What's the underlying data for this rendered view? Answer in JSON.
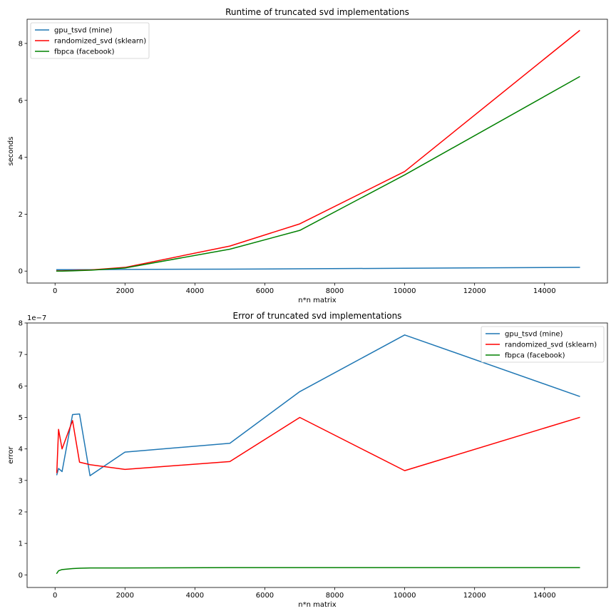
{
  "chart_data": [
    {
      "type": "line",
      "title": "Runtime of truncated svd implementations",
      "xlabel": "n*n matrix",
      "ylabel": "seconds",
      "xlim": [
        -800,
        15800
      ],
      "ylim": [
        -0.42,
        8.85
      ],
      "xticks": [
        0,
        2000,
        4000,
        6000,
        8000,
        10000,
        12000,
        14000
      ],
      "yticks": [
        0,
        2,
        4,
        6,
        8
      ],
      "ytick_labels": [
        "0",
        "2",
        "4",
        "6",
        "8"
      ],
      "offset_label": "",
      "legend_position": "upper-left",
      "series": [
        {
          "name": "gpu_tsvd (mine)",
          "color": "#1f77b4",
          "x": [
            50,
            100,
            200,
            500,
            700,
            1000,
            2000,
            5000,
            7000,
            10000,
            15000
          ],
          "y": [
            0.05,
            0.05,
            0.05,
            0.05,
            0.05,
            0.05,
            0.06,
            0.07,
            0.08,
            0.1,
            0.13
          ]
        },
        {
          "name": "randomized_svd (sklearn)",
          "color": "#ff0000",
          "x": [
            50,
            100,
            200,
            500,
            700,
            1000,
            2000,
            5000,
            7000,
            10000,
            15000
          ],
          "y": [
            0.01,
            0.01,
            0.01,
            0.02,
            0.03,
            0.04,
            0.13,
            0.88,
            1.66,
            3.5,
            8.45
          ]
        },
        {
          "name": "fbpca (facebook)",
          "color": "#008000",
          "x": [
            50,
            100,
            200,
            500,
            700,
            1000,
            2000,
            5000,
            7000,
            10000,
            15000
          ],
          "y": [
            0.0,
            0.0,
            0.0,
            0.01,
            0.02,
            0.03,
            0.11,
            0.77,
            1.43,
            3.38,
            6.83
          ]
        }
      ]
    },
    {
      "type": "line",
      "title": "Error of truncated svd implementations",
      "xlabel": "n*n matrix",
      "ylabel": "error",
      "xlim": [
        -800,
        15800
      ],
      "ylim": [
        -0.4,
        8.0
      ],
      "xticks": [
        0,
        2000,
        4000,
        6000,
        8000,
        10000,
        12000,
        14000
      ],
      "yticks": [
        0,
        1,
        2,
        3,
        4,
        5,
        6,
        7,
        8
      ],
      "ytick_labels": [
        "0",
        "1",
        "2",
        "3",
        "4",
        "5",
        "6",
        "7",
        "8"
      ],
      "offset_label": "1e−7",
      "legend_position": "upper-right",
      "series": [
        {
          "name": "gpu_tsvd (mine)",
          "color": "#1f77b4",
          "x": [
            50,
            100,
            200,
            500,
            700,
            1000,
            2000,
            5000,
            7000,
            10000,
            15000
          ],
          "y": [
            3.18,
            3.38,
            3.28,
            5.09,
            5.11,
            3.15,
            3.9,
            4.18,
            5.82,
            7.62,
            5.67
          ]
        },
        {
          "name": "randomized_svd (sklearn)",
          "color": "#ff0000",
          "x": [
            50,
            100,
            200,
            500,
            700,
            1000,
            2000,
            5000,
            7000,
            10000,
            15000
          ],
          "y": [
            3.25,
            4.62,
            4.0,
            4.9,
            3.58,
            3.5,
            3.35,
            3.6,
            5.0,
            3.31,
            5.0
          ]
        },
        {
          "name": "fbpca (facebook)",
          "color": "#008000",
          "x": [
            50,
            100,
            200,
            500,
            700,
            1000,
            2000,
            5000,
            7000,
            10000,
            15000
          ],
          "y": [
            0.05,
            0.13,
            0.17,
            0.2,
            0.21,
            0.22,
            0.22,
            0.23,
            0.23,
            0.23,
            0.23
          ]
        }
      ]
    }
  ]
}
